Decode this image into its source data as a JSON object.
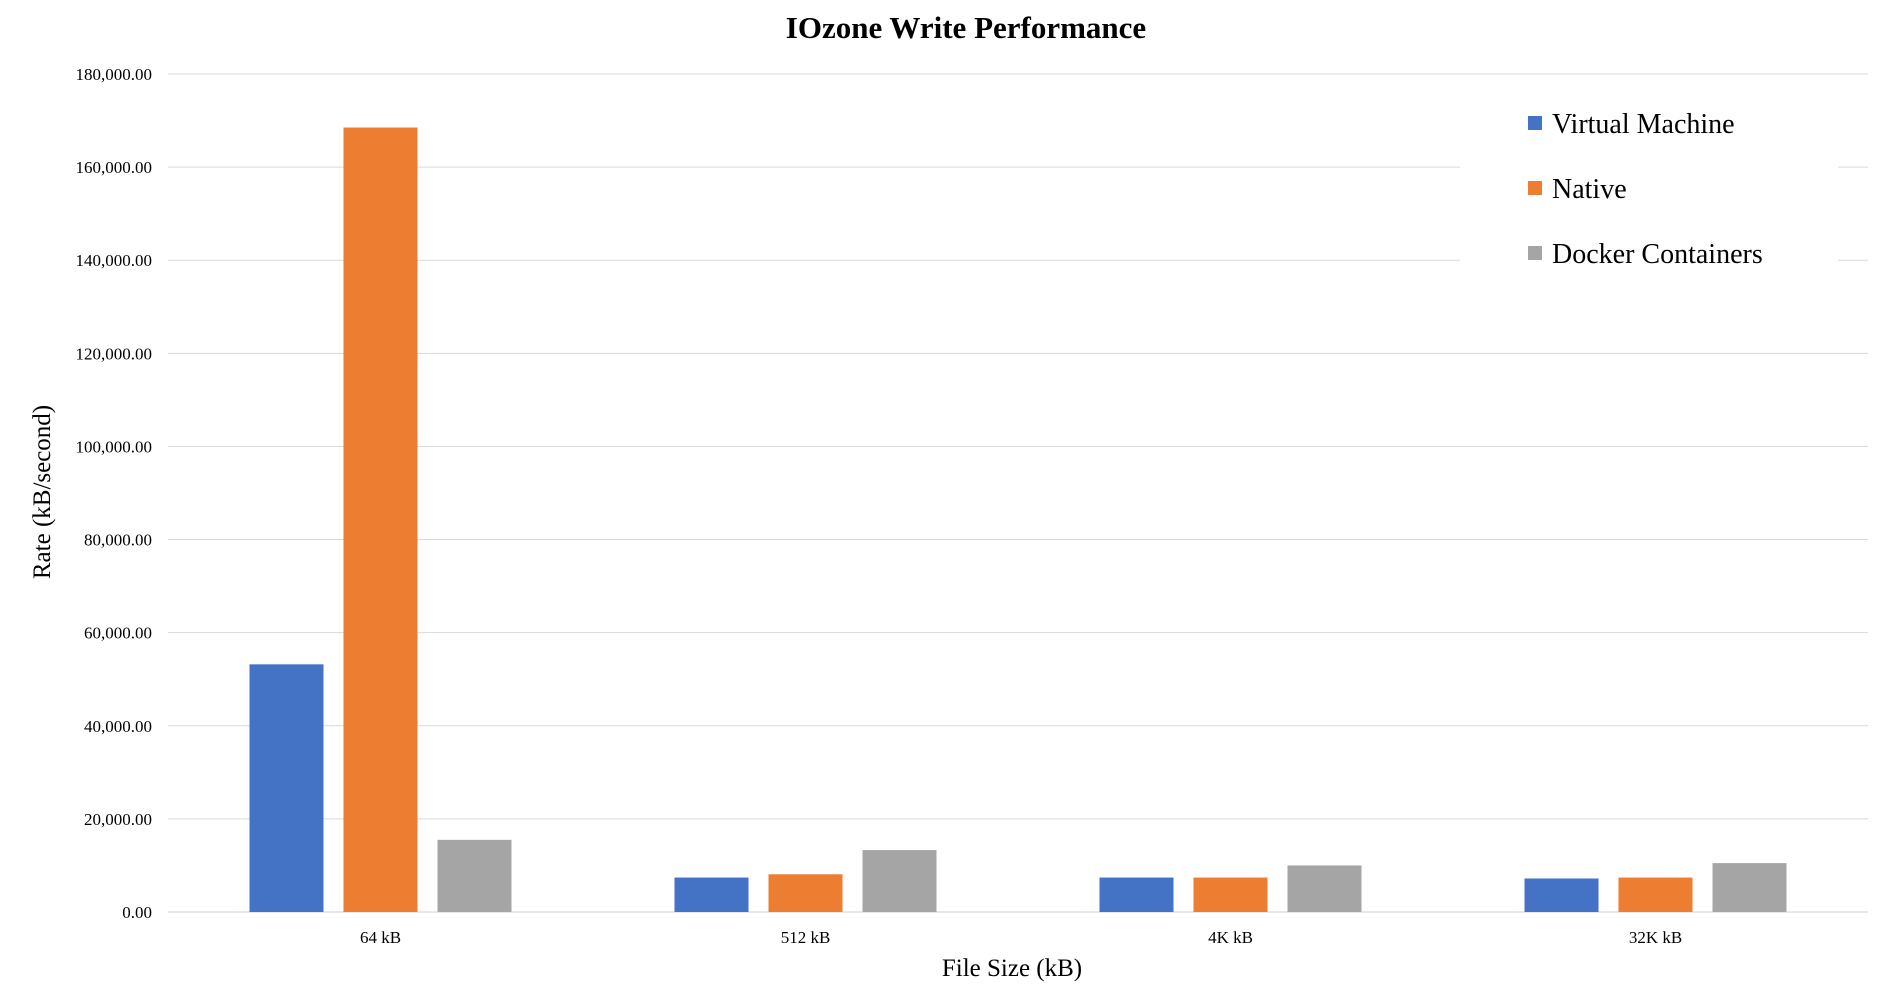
{
  "chart_data": {
    "type": "bar",
    "title": "IOzone Write Performance",
    "xlabel": "File Size (kB)",
    "ylabel": "Rate (kB/second)",
    "categories": [
      "64 kB",
      "512 kB",
      "4K kB",
      "32K kB"
    ],
    "ylim": [
      0,
      180000
    ],
    "yticks": [
      0,
      20000,
      40000,
      60000,
      80000,
      100000,
      120000,
      140000,
      160000,
      180000
    ],
    "ytick_labels": [
      "0.00",
      "20,000.00",
      "40,000.00",
      "60,000.00",
      "80,000.00",
      "100,000.00",
      "120,000.00",
      "140,000.00",
      "160,000.00",
      "180,000.00"
    ],
    "grid": true,
    "legend": "top-right",
    "series": [
      {
        "name": "Virtual Machine",
        "color": "#4472c4",
        "values": [
          53200,
          7400,
          7400,
          7200
        ]
      },
      {
        "name": "Native",
        "color": "#ed7d31",
        "values": [
          168500,
          8100,
          7400,
          7400
        ]
      },
      {
        "name": "Docker Containers",
        "color": "#a5a5a5",
        "values": [
          15500,
          13300,
          10000,
          10500
        ]
      }
    ]
  }
}
